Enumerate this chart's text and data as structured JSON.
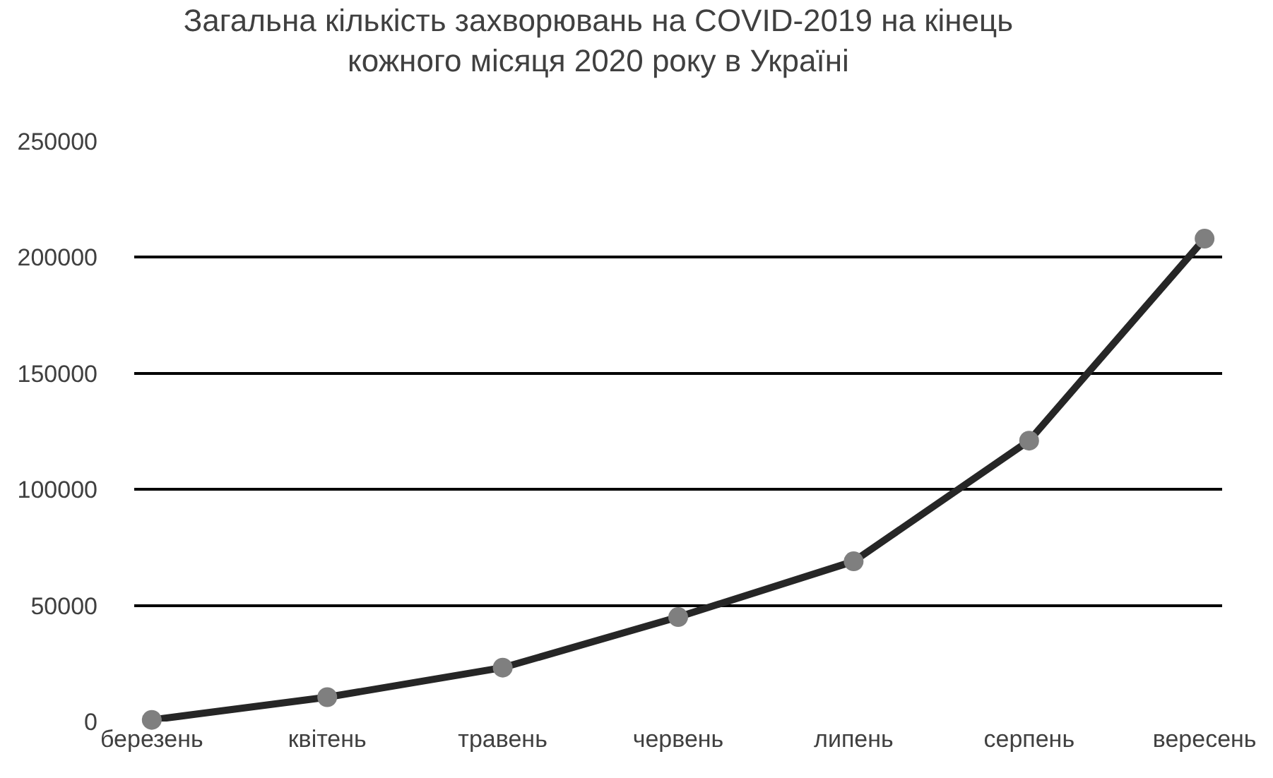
{
  "chart_data": {
    "type": "line",
    "title": "Загальна кількість захворювань на COVID-2019 на кінець\nкожного місяця 2020 року в Україні",
    "categories": [
      "березень",
      "квітень",
      "травень",
      "червень",
      "липень",
      "серпень",
      "вересень"
    ],
    "series": [
      {
        "color": "#262626",
        "values": [
          700,
          10500,
          23200,
          45000,
          69000,
          121000,
          208000
        ]
      }
    ],
    "ylim": [
      0,
      250000
    ],
    "yticks": [
      0,
      50000,
      100000,
      150000,
      200000,
      250000
    ],
    "grid": "y",
    "legend": false,
    "marker": "circle",
    "line_style": "solid"
  }
}
